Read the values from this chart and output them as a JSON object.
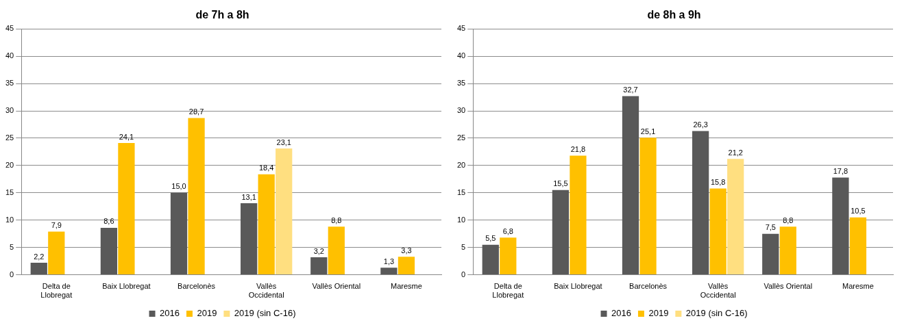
{
  "chart_data": [
    {
      "type": "bar",
      "title": "de 7h a 8h",
      "categories": [
        "Delta de Llobregat",
        "Baix Llobregat",
        "Barcelonès",
        "Vallès Occidental",
        "Vallès Oriental",
        "Maresme"
      ],
      "series": [
        {
          "name": "2016",
          "color": "#595959",
          "values": [
            2.2,
            8.6,
            15.0,
            13.1,
            3.2,
            1.3
          ],
          "value_labels": [
            "2,2",
            "8,6",
            "15,0",
            "13,1",
            "3,2",
            "1,3"
          ]
        },
        {
          "name": "2019",
          "color": "#ffc000",
          "values": [
            7.9,
            24.1,
            28.7,
            18.4,
            8.8,
            3.3
          ],
          "value_labels": [
            "7,9",
            "24,1",
            "28,7",
            "18,4",
            "8,8",
            "3,3"
          ]
        },
        {
          "name": "2019 (sin C-16)",
          "color": "#ffdf80",
          "values": [
            null,
            null,
            null,
            23.1,
            null,
            null
          ],
          "value_labels": [
            null,
            null,
            null,
            "23,1",
            null,
            null
          ]
        }
      ],
      "ylim": [
        0,
        45
      ],
      "yticks": [
        0,
        5,
        10,
        15,
        20,
        25,
        30,
        35,
        40,
        45
      ],
      "grid": "y",
      "legend": "bottom"
    },
    {
      "type": "bar",
      "title": "de 8h a 9h",
      "categories": [
        "Delta de Llobregat",
        "Baix Llobregat",
        "Barcelonès",
        "Vallès Occidental",
        "Vallès Oriental",
        "Maresme"
      ],
      "series": [
        {
          "name": "2016",
          "color": "#595959",
          "values": [
            5.5,
            15.5,
            32.7,
            26.3,
            7.5,
            17.8
          ],
          "value_labels": [
            "5,5",
            "15,5",
            "32,7",
            "26,3",
            "7,5",
            "17,8"
          ]
        },
        {
          "name": "2019",
          "color": "#ffc000",
          "values": [
            6.8,
            21.8,
            25.1,
            15.8,
            8.8,
            10.5
          ],
          "value_labels": [
            "6,8",
            "21,8",
            "25,1",
            "15,8",
            "8,8",
            "10,5"
          ]
        },
        {
          "name": "2019 (sin C-16)",
          "color": "#ffdf80",
          "values": [
            null,
            null,
            null,
            21.2,
            null,
            null
          ],
          "value_labels": [
            null,
            null,
            null,
            "21,2",
            null,
            null
          ]
        }
      ],
      "ylim": [
        0,
        45
      ],
      "yticks": [
        0,
        5,
        10,
        15,
        20,
        25,
        30,
        35,
        40,
        45
      ],
      "grid": "y",
      "legend": "bottom"
    }
  ]
}
